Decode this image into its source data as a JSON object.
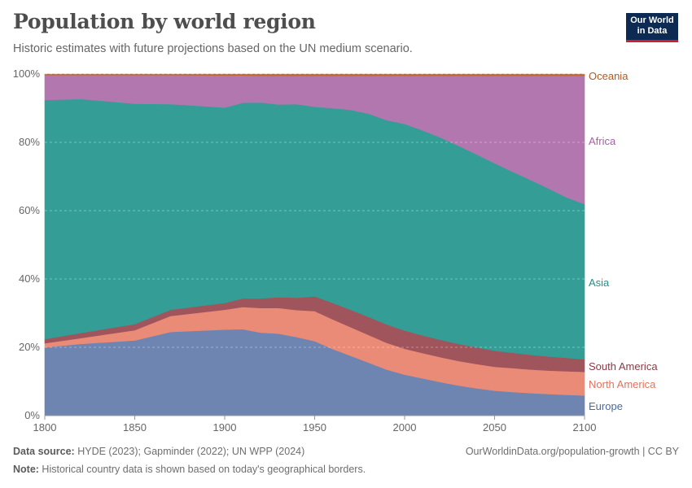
{
  "header": {
    "title": "Population by world region",
    "subtitle": "Historic estimates with future projections based on the UN medium scenario.",
    "logo_line1": "Our World",
    "logo_line2": "in Data"
  },
  "footer": {
    "source_label": "Data source:",
    "source_text": " HYDE (2023); Gapminder (2022); UN WPP (2024)",
    "note_label": "Note:",
    "note_text": " Historical country data is shown based on today's geographical borders.",
    "attribution": "OurWorldinData.org/population-growth | CC BY"
  },
  "chart_data": {
    "type": "area",
    "stacked": true,
    "normalized": true,
    "x": [
      1800,
      1820,
      1850,
      1870,
      1900,
      1910,
      1920,
      1930,
      1940,
      1950,
      1960,
      1970,
      1980,
      1990,
      2000,
      2010,
      2020,
      2030,
      2040,
      2050,
      2060,
      2070,
      2080,
      2090,
      2100
    ],
    "xlim": [
      1800,
      2100
    ],
    "ylim": [
      0,
      100
    ],
    "x_ticks": [
      "1800",
      "1850",
      "1900",
      "1950",
      "2000",
      "2050",
      "2100"
    ],
    "y_ticks": [
      "0%",
      "20%",
      "40%",
      "60%",
      "80%",
      "100%"
    ],
    "grid": true,
    "legend": "inline-right",
    "series": [
      {
        "name": "Europe",
        "color": "#6d85b0",
        "values": [
          20.0,
          21.0,
          22.0,
          24.5,
          25.2,
          25.3,
          24.3,
          24.0,
          23.0,
          21.8,
          19.5,
          17.5,
          15.5,
          13.5,
          12.0,
          10.9,
          9.8,
          8.8,
          8.0,
          7.3,
          6.9,
          6.6,
          6.3,
          6.1,
          5.9
        ]
      },
      {
        "name": "North America",
        "color": "#e98b77",
        "values": [
          1.2,
          1.7,
          3.0,
          4.7,
          5.8,
          6.5,
          7.2,
          7.5,
          7.9,
          8.8,
          8.7,
          8.4,
          8.1,
          7.8,
          7.6,
          7.4,
          7.3,
          7.2,
          7.1,
          7.0,
          7.0,
          6.9,
          6.9,
          6.9,
          6.9
        ]
      },
      {
        "name": "South America",
        "color": "#a0545c",
        "values": [
          1.2,
          1.5,
          1.8,
          1.8,
          2.0,
          2.5,
          2.8,
          3.2,
          3.6,
          4.3,
          4.8,
          5.1,
          5.3,
          5.4,
          5.3,
          5.2,
          5.1,
          5.0,
          4.9,
          4.7,
          4.5,
          4.3,
          4.1,
          3.9,
          3.7
        ]
      },
      {
        "name": "Asia",
        "color": "#349e96",
        "values": [
          70.0,
          68.5,
          64.5,
          60.2,
          57.2,
          57.3,
          57.4,
          56.4,
          56.7,
          55.5,
          57.0,
          58.5,
          59.5,
          59.8,
          60.5,
          60.0,
          59.2,
          58.0,
          56.5,
          54.9,
          53.0,
          51.2,
          49.2,
          47.0,
          45.4
        ]
      },
      {
        "name": "Africa",
        "color": "#b377b0",
        "values": [
          7.3,
          7.0,
          8.4,
          8.5,
          9.4,
          8.0,
          7.8,
          8.4,
          8.3,
          9.1,
          9.5,
          10.0,
          11.1,
          13.0,
          14.1,
          16.0,
          18.1,
          20.5,
          23.0,
          25.6,
          28.1,
          30.5,
          33.0,
          35.6,
          37.6
        ]
      },
      {
        "name": "Oceania",
        "color": "#c0662e",
        "values": [
          0.3,
          0.3,
          0.3,
          0.3,
          0.4,
          0.4,
          0.5,
          0.5,
          0.5,
          0.5,
          0.5,
          0.5,
          0.5,
          0.5,
          0.5,
          0.5,
          0.5,
          0.5,
          0.5,
          0.5,
          0.5,
          0.5,
          0.5,
          0.5,
          0.5
        ]
      }
    ]
  }
}
